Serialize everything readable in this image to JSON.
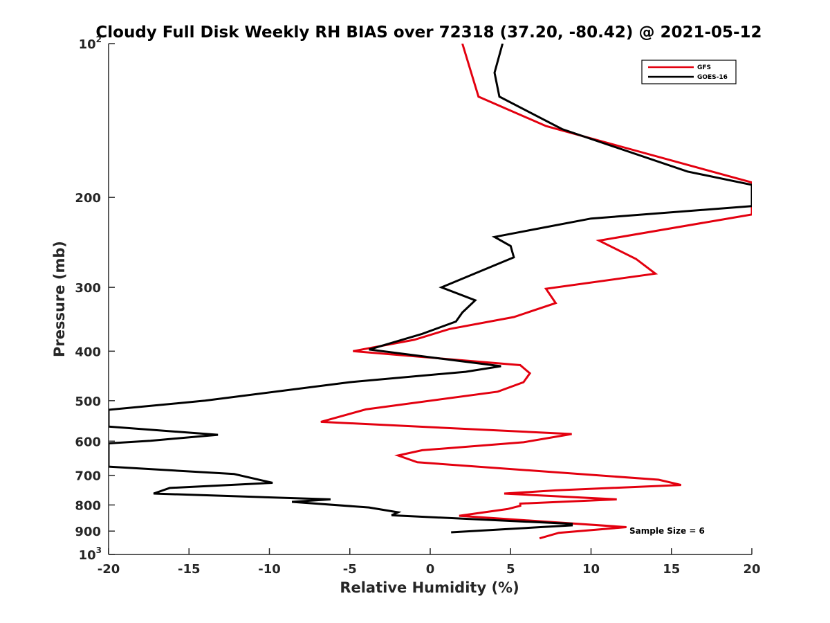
{
  "chart_data": {
    "type": "line",
    "title": "Cloudy Full Disk Weekly RH BIAS over 72318 (37.20, -80.42) @ 2021-05-12",
    "xlabel": "Relative Humidity (%)",
    "ylabel": "Pressure (mb)",
    "xlim": [
      -20,
      20
    ],
    "ylim": [
      100,
      1000
    ],
    "yscale": "log",
    "yreversed": true,
    "grid": false,
    "x_ticks": [
      {
        "value": -20,
        "label": "-20"
      },
      {
        "value": -15,
        "label": "-15"
      },
      {
        "value": -10,
        "label": "-10"
      },
      {
        "value": -5,
        "label": "-5"
      },
      {
        "value": 0,
        "label": "0"
      },
      {
        "value": 5,
        "label": "5"
      },
      {
        "value": 10,
        "label": "10"
      },
      {
        "value": 15,
        "label": "15"
      },
      {
        "value": 20,
        "label": "20"
      }
    ],
    "y_ticks": [
      {
        "value": 100,
        "base": "10",
        "exp": "2"
      },
      {
        "value": 200,
        "base": "200",
        "exp": ""
      },
      {
        "value": 300,
        "base": "300",
        "exp": ""
      },
      {
        "value": 400,
        "base": "400",
        "exp": ""
      },
      {
        "value": 500,
        "base": "500",
        "exp": ""
      },
      {
        "value": 600,
        "base": "600",
        "exp": ""
      },
      {
        "value": 700,
        "base": "700",
        "exp": ""
      },
      {
        "value": 800,
        "base": "800",
        "exp": ""
      },
      {
        "value": 900,
        "base": "900",
        "exp": ""
      },
      {
        "value": 1000,
        "base": "10",
        "exp": "3"
      }
    ],
    "legend_position": "top-right",
    "series": [
      {
        "name": "GFS",
        "color": "#e3000f",
        "points": [
          [
            2.0,
            100
          ],
          [
            3.0,
            127
          ],
          [
            7.2,
            145
          ],
          [
            20.0,
            187
          ],
          [
            20.0,
            216
          ],
          [
            17.8,
            222
          ],
          [
            10.5,
            243
          ],
          [
            12.8,
            264
          ],
          [
            14.0,
            282
          ],
          [
            7.2,
            302
          ],
          [
            7.8,
            322
          ],
          [
            5.2,
            343
          ],
          [
            1.2,
            362
          ],
          [
            -1.0,
            380
          ],
          [
            -4.8,
            400
          ],
          [
            5.6,
            426
          ],
          [
            6.2,
            442
          ],
          [
            5.8,
            460
          ],
          [
            4.2,
            480
          ],
          [
            -4.0,
            520
          ],
          [
            -6.8,
            550
          ],
          [
            8.8,
            581
          ],
          [
            5.8,
            603
          ],
          [
            -0.5,
            625
          ],
          [
            -2.0,
            640
          ],
          [
            -0.8,
            660
          ],
          [
            14.2,
            714
          ],
          [
            15.6,
            731
          ],
          [
            7.8,
            749
          ],
          [
            4.6,
            760
          ],
          [
            11.6,
            780
          ],
          [
            5.6,
            795
          ],
          [
            5.6,
            803
          ],
          [
            4.8,
            815
          ],
          [
            1.8,
            840
          ],
          [
            12.2,
            884
          ],
          [
            8.0,
            907
          ],
          [
            6.8,
            930
          ]
        ]
      },
      {
        "name": "GOES-16",
        "color": "#000000",
        "points": [
          [
            4.5,
            100
          ],
          [
            4.0,
            114
          ],
          [
            4.3,
            127
          ],
          [
            8.2,
            147
          ],
          [
            16.0,
            178
          ],
          [
            20.0,
            189
          ],
          [
            20.0,
            208
          ],
          [
            10.0,
            220
          ],
          [
            4.0,
            239
          ],
          [
            5.0,
            249
          ],
          [
            5.2,
            262
          ],
          [
            0.7,
            300
          ],
          [
            2.8,
            318
          ],
          [
            2.0,
            336
          ],
          [
            1.6,
            350
          ],
          [
            -0.5,
            370
          ],
          [
            -3.8,
            397
          ],
          [
            4.4,
            428
          ],
          [
            2.2,
            439
          ],
          [
            -5.0,
            460
          ],
          [
            -14.0,
            500
          ],
          [
            -20.0,
            521
          ],
          [
            -20.0,
            562
          ],
          [
            -13.2,
            583
          ],
          [
            -17.4,
            599
          ],
          [
            -20.0,
            606
          ],
          [
            -20.0,
            673
          ],
          [
            -12.2,
            696
          ],
          [
            -9.8,
            724
          ],
          [
            -16.2,
            741
          ],
          [
            -17.2,
            760
          ],
          [
            -6.2,
            780
          ],
          [
            -8.6,
            789
          ],
          [
            -3.8,
            809
          ],
          [
            -2.0,
            827
          ],
          [
            -2.4,
            838
          ],
          [
            8.8,
            871
          ],
          [
            8.8,
            877
          ],
          [
            1.3,
            905
          ]
        ]
      }
    ],
    "legend": [
      {
        "label": "GFS",
        "color": "#e3000f"
      },
      {
        "label": "GOES-16",
        "color": "#000000"
      }
    ],
    "annotation": "Sample Size = 6"
  }
}
